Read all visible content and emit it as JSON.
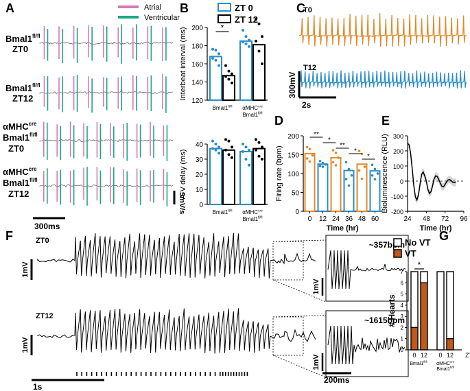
{
  "figure": {
    "panel_labels": [
      "A",
      "B",
      "C",
      "D",
      "E",
      "F",
      "G"
    ]
  },
  "colors": {
    "atrial": "#d779b5",
    "ventricular": "#1aa883",
    "zt0": "#2b8cc8",
    "zt12": "#000000",
    "t0_trace": "#e08a2a",
    "t12_trace": "#2a8ec8",
    "firing_bar": "#e08a2a",
    "firing_bar_alt": "#2b8cc8",
    "vt": "#c0591c",
    "biolum_band": "#aaaaaa"
  },
  "chart_data": [
    {
      "id": "A",
      "type": "line",
      "title": "ECG traces",
      "legend": [
        {
          "name": "Atrial"
        },
        {
          "name": "Ventricular"
        }
      ],
      "rows": [
        {
          "line1": "Bmal1",
          "sup1": "fl/fl",
          "line2": "ZT0",
          "line3": "",
          "sup2": "",
          "beats": 9
        },
        {
          "line1": "Bmal1",
          "sup1": "fl/fl",
          "line2": "ZT12",
          "line3": "",
          "sup2": "",
          "beats": 9
        },
        {
          "line1": "αMHC",
          "sup1": "cre",
          "line2": "Bmal1",
          "sup2": "fl/fl",
          "line3": "ZT0",
          "beats": 10
        },
        {
          "line1": "αMHC",
          "sup1": "cre",
          "line2": "Bmal1",
          "sup2": "fl/fl",
          "line3": "ZT12",
          "beats": 10
        }
      ],
      "scale_time": "300ms",
      "scale_voltage": "5mV/s"
    },
    {
      "id": "B1",
      "type": "bar",
      "legend": [
        {
          "name": "ZT 0"
        },
        {
          "name": "ZT 12"
        }
      ],
      "ylabel": "Interbeat interval (ms)",
      "ylim": [
        120,
        200
      ],
      "yticks": [
        120,
        140,
        160,
        180,
        200
      ],
      "groups": [
        {
          "label": "Bmal1",
          "sup": "fl/fl",
          "label2": ""
        },
        {
          "label": "αMHC",
          "sup": "cre",
          "label2": "Bmal1fl/fl"
        }
      ],
      "series": [
        {
          "name": "ZT 0",
          "values": [
            168,
            185
          ],
          "points": [
            [
              176,
              175,
              171,
              166,
              164,
              158
            ],
            [
              197,
              190,
              186,
              184,
              182,
              179
            ]
          ]
        },
        {
          "name": "ZT 12",
          "values": [
            147,
            181
          ],
          "points": [
            [
              158,
              152,
              149,
              146,
              143,
              139
            ],
            [
              209,
              204,
              190,
              185,
              174,
              160
            ]
          ]
        }
      ],
      "significance": [
        {
          "group": 0,
          "label": "*"
        }
      ]
    },
    {
      "id": "B2",
      "type": "bar",
      "ylabel": "A-V delay (ms)",
      "ylim": [
        0,
        40
      ],
      "yticks": [
        0,
        10,
        20,
        30,
        40
      ],
      "groups": [
        {
          "label": "Bmal1",
          "sup": "fl/fl",
          "label2": ""
        },
        {
          "label": "αMHC",
          "sup": "cre",
          "label2": "Bmal1fl/fl"
        }
      ],
      "series": [
        {
          "name": "ZT 0",
          "values": [
            37,
            35
          ],
          "points": [
            [
              42,
              40,
              38,
              37,
              36,
              34
            ],
            [
              40,
              38,
              36,
              35,
              30,
              26
            ]
          ]
        },
        {
          "name": "ZT 12",
          "values": [
            36,
            37
          ],
          "points": [
            [
              43,
              42,
              38,
              36,
              33,
              31
            ],
            [
              43,
              41,
              38,
              36,
              32,
              30
            ]
          ]
        }
      ]
    },
    {
      "id": "C",
      "type": "line",
      "traces": [
        {
          "label": "T0",
          "spikes": 28
        },
        {
          "label": "T12",
          "spikes": 42
        }
      ],
      "scale_voltage": "300mV",
      "scale_time": "2s"
    },
    {
      "id": "D",
      "type": "bar",
      "xlabel": "Time (hr)",
      "ylabel": "Firing rate (bpm)",
      "ylim": [
        0,
        200
      ],
      "yticks": [
        0,
        50,
        100,
        150,
        200
      ],
      "categories": [
        "0",
        "12",
        "24",
        "36",
        "48",
        "60"
      ],
      "values": [
        153,
        125,
        142,
        108,
        125,
        107
      ],
      "points": [
        [
          170,
          165,
          148,
          140,
          132
        ],
        [
          133,
          128,
          124,
          120,
          118
        ],
        [
          162,
          155,
          142,
          130,
          122
        ],
        [
          130,
          112,
          95,
          85,
          68
        ],
        [
          160,
          152,
          118,
          108,
          86
        ],
        [
          123,
          112,
          100,
          95,
          85
        ]
      ],
      "significance": [
        {
          "from": 0,
          "to": 1,
          "label": "**"
        },
        {
          "from": 1,
          "to": 2,
          "label": "*"
        },
        {
          "from": 2,
          "to": 3,
          "label": "**"
        },
        {
          "from": 3,
          "to": 4,
          "label": "*"
        },
        {
          "from": 4,
          "to": 5,
          "label": "*"
        }
      ]
    },
    {
      "id": "E",
      "type": "line",
      "xlabel": "Time (hr)",
      "ylabel": "Bioluminescence (RLU)",
      "xlim": [
        24,
        96
      ],
      "ylim": [
        -200,
        300
      ],
      "xticks": [
        24,
        48,
        72,
        96
      ],
      "yticks": [
        -200,
        -100,
        0,
        100,
        200,
        300
      ],
      "x": [
        24,
        26,
        28,
        30,
        32,
        34,
        36,
        38,
        40,
        42,
        44,
        46,
        48,
        50,
        52,
        54,
        56,
        58,
        60,
        62,
        64,
        66,
        68,
        70,
        72,
        74,
        76,
        78,
        80,
        82,
        84,
        86
      ],
      "y": [
        250,
        240,
        180,
        80,
        -30,
        -105,
        -125,
        -90,
        -20,
        45,
        60,
        35,
        0,
        -55,
        -82,
        -70,
        -30,
        15,
        35,
        30,
        10,
        -15,
        -35,
        -38,
        -22,
        -5,
        8,
        10,
        2,
        -8,
        -10,
        -5
      ]
    },
    {
      "id": "F",
      "type": "line",
      "rows": [
        {
          "label": "ZT0",
          "rate": "~357bpm"
        },
        {
          "label": "ZT12",
          "rate": "~1615bpm"
        }
      ],
      "pacing_ticks": 40,
      "scale_voltage": "1mV",
      "scale_time": "1s",
      "scale_time_zoom": "200ms"
    },
    {
      "id": "G",
      "type": "bar",
      "legend": [
        {
          "name": "No VT"
        },
        {
          "name": "VT"
        }
      ],
      "ylabel": "# Hearts",
      "ylim": [
        0,
        7
      ],
      "yticks": [
        0,
        1,
        2,
        3,
        4,
        5,
        6,
        7
      ],
      "xunit": "ZT",
      "groups": [
        {
          "label": "Bmal1",
          "sup": "fl/fl",
          "label2": ""
        },
        {
          "label": "αMHC",
          "sup": "cre",
          "label2": "Bmal1fl/fl"
        }
      ],
      "categories": [
        "0",
        "12",
        "0",
        "12"
      ],
      "series": [
        {
          "name": "VT",
          "values": [
            2,
            6,
            0,
            1
          ]
        },
        {
          "name": "No VT",
          "values": [
            5,
            1,
            7,
            6
          ]
        }
      ],
      "significance": [
        {
          "group": 0,
          "label": "*"
        }
      ]
    }
  ]
}
